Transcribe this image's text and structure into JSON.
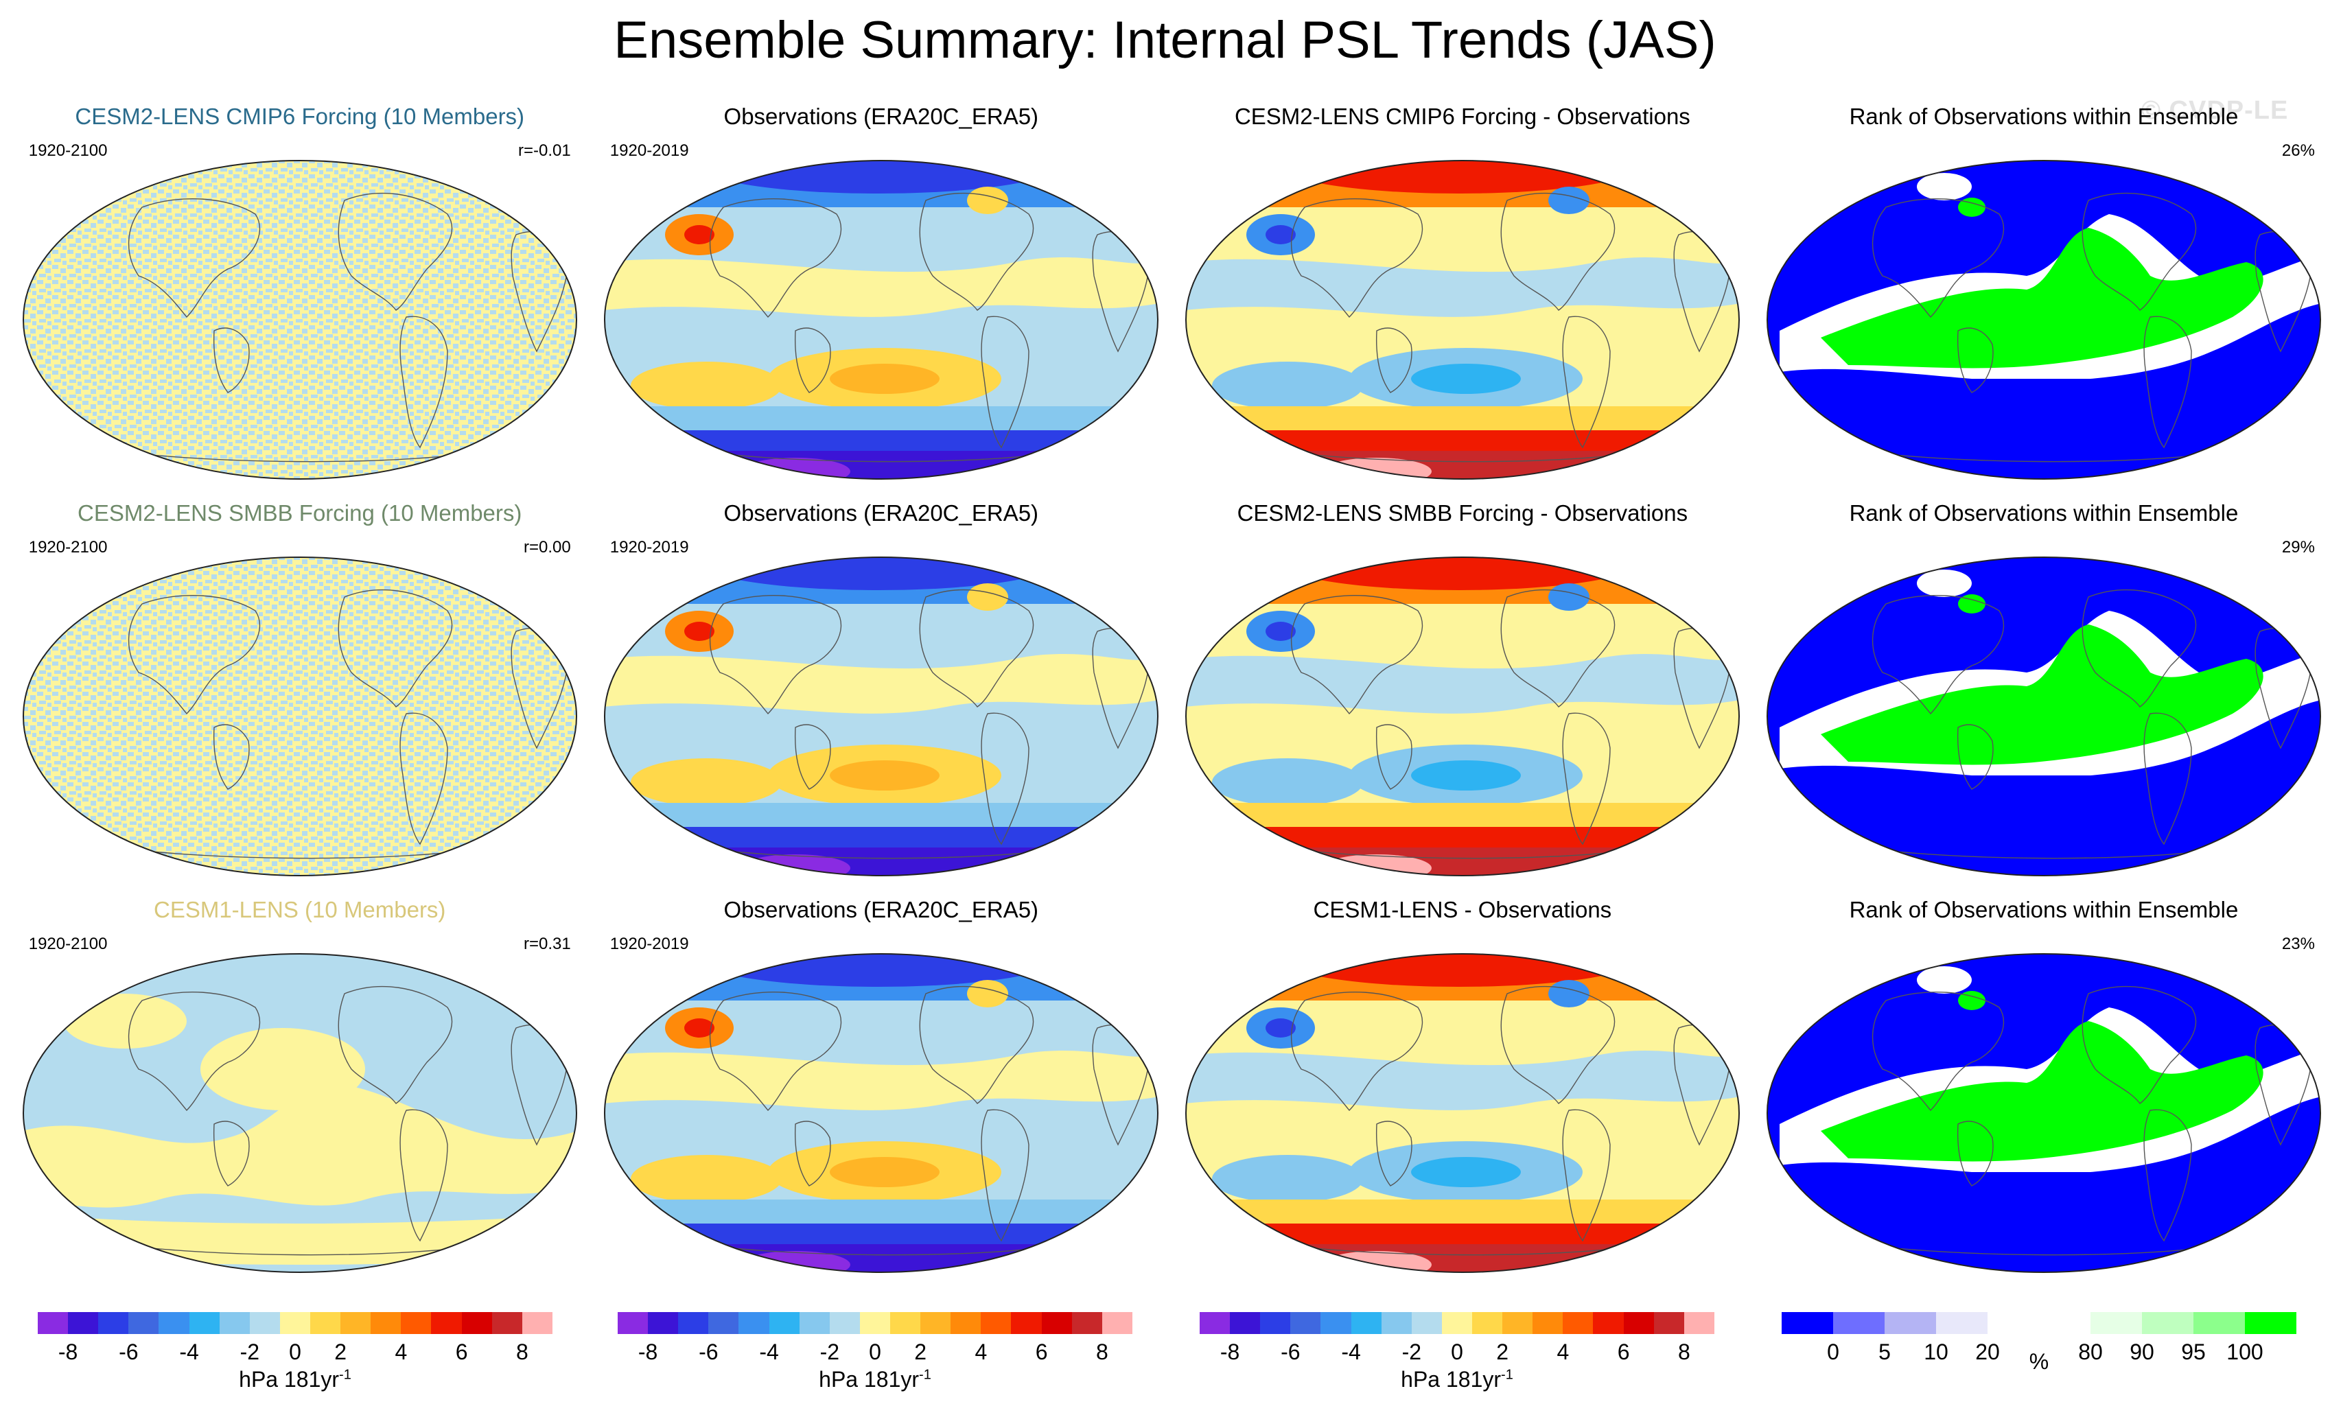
{
  "title": "Ensemble Summary: Internal PSL Trends (JAS)",
  "watermark": "© CVDP-LE",
  "panels": [
    {
      "title": "CESM2-LENS CMIP6 Forcing (10 Members)",
      "title_color": "#2a6b8c",
      "left": "1920-2100",
      "right": "r=-0.01",
      "map": "noise"
    },
    {
      "title": "Observations (ERA20C_ERA5)",
      "title_color": "#000000",
      "left": "1920-2019",
      "right": "",
      "map": "obs"
    },
    {
      "title": "CESM2-LENS CMIP6 Forcing - Observations",
      "title_color": "#000000",
      "left": "",
      "right": "",
      "map": "diff"
    },
    {
      "title": "Rank of Observations within Ensemble",
      "title_color": "#000000",
      "left": "",
      "right": "26%",
      "map": "rank"
    },
    {
      "title": "CESM2-LENS SMBB Forcing (10 Members)",
      "title_color": "#6f8a6a",
      "left": "1920-2100",
      "right": "r=0.00",
      "map": "noise"
    },
    {
      "title": "Observations (ERA20C_ERA5)",
      "title_color": "#000000",
      "left": "1920-2019",
      "right": "",
      "map": "obs"
    },
    {
      "title": "CESM2-LENS SMBB Forcing - Observations",
      "title_color": "#000000",
      "left": "",
      "right": "",
      "map": "diff"
    },
    {
      "title": "Rank of Observations within Ensemble",
      "title_color": "#000000",
      "left": "",
      "right": "29%",
      "map": "rank"
    },
    {
      "title": "CESM1-LENS (10 Members)",
      "title_color": "#d8c77a",
      "left": "1920-2100",
      "right": "r=0.31",
      "map": "cesm1"
    },
    {
      "title": "Observations (ERA20C_ERA5)",
      "title_color": "#000000",
      "left": "1920-2019",
      "right": "",
      "map": "obs"
    },
    {
      "title": "CESM1-LENS - Observations",
      "title_color": "#000000",
      "left": "",
      "right": "",
      "map": "diff"
    },
    {
      "title": "Rank of Observations within Ensemble",
      "title_color": "#000000",
      "left": "",
      "right": "23%",
      "map": "rank"
    }
  ],
  "colorbars": [
    {
      "colors": [
        "#8a2be2",
        "#3c14d6",
        "#2c3ee6",
        "#3f68e0",
        "#3a90f0",
        "#2eb3f2",
        "#86c8ee",
        "#b4dcee",
        "#fff59a",
        "#ffd84a",
        "#ffb526",
        "#ff8a0a",
        "#ff5a00",
        "#f01a00",
        "#d80000",
        "#c8282a",
        "#ffb0b0"
      ],
      "labels": [
        "-8",
        "-6",
        "-4",
        "-2",
        "0",
        "2",
        "4",
        "6",
        "8"
      ],
      "label_positions": [
        0.0588,
        0.1765,
        0.2941,
        0.4118,
        0.5,
        0.5882,
        0.7059,
        0.8235,
        0.9412
      ],
      "unit": "hPa 181yr",
      "unit_sup": "-1"
    },
    {
      "colors": [
        "#8a2be2",
        "#3c14d6",
        "#2c3ee6",
        "#3f68e0",
        "#3a90f0",
        "#2eb3f2",
        "#86c8ee",
        "#b4dcee",
        "#fff59a",
        "#ffd84a",
        "#ffb526",
        "#ff8a0a",
        "#ff5a00",
        "#f01a00",
        "#d80000",
        "#c8282a",
        "#ffb0b0"
      ],
      "labels": [
        "-8",
        "-6",
        "-4",
        "-2",
        "0",
        "2",
        "4",
        "6",
        "8"
      ],
      "label_positions": [
        0.0588,
        0.1765,
        0.2941,
        0.4118,
        0.5,
        0.5882,
        0.7059,
        0.8235,
        0.9412
      ],
      "unit": "hPa 181yr",
      "unit_sup": "-1"
    },
    {
      "colors": [
        "#8a2be2",
        "#3c14d6",
        "#2c3ee6",
        "#3f68e0",
        "#3a90f0",
        "#2eb3f2",
        "#86c8ee",
        "#b4dcee",
        "#fff59a",
        "#ffd84a",
        "#ffb526",
        "#ff8a0a",
        "#ff5a00",
        "#f01a00",
        "#d80000",
        "#c8282a",
        "#ffb0b0"
      ],
      "labels": [
        "-8",
        "-6",
        "-4",
        "-2",
        "0",
        "2",
        "4",
        "6",
        "8"
      ],
      "label_positions": [
        0.0588,
        0.1765,
        0.2941,
        0.4118,
        0.5,
        0.5882,
        0.7059,
        0.8235,
        0.9412
      ],
      "unit": "hPa 181yr",
      "unit_sup": "-1"
    },
    {
      "colors": [
        "#0000ff",
        "#6e6eff",
        "#b4b4f4",
        "#e8e8fa",
        "#ffffff",
        "#ffffff",
        "#e6ffe6",
        "#bfffbf",
        "#8cff8c",
        "#00ff00"
      ],
      "labels": [
        "0",
        "5",
        "10",
        "20",
        "%",
        "80",
        "90",
        "95",
        "100"
      ],
      "label_positions": [
        0.1,
        0.2,
        0.3,
        0.4,
        0.5,
        0.6,
        0.7,
        0.8,
        0.9
      ],
      "unit": "",
      "unit_sup": ""
    }
  ]
}
